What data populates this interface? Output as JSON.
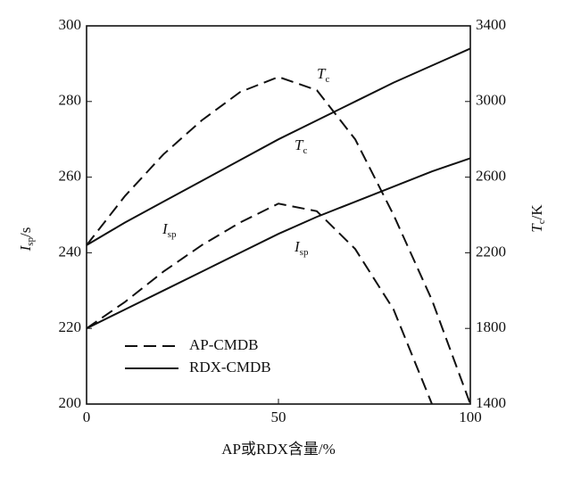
{
  "chart_data": {
    "type": "line",
    "x_label": "AP或RDX含量/%",
    "y_label": {
      "text": "I",
      "sub": "sp",
      "unit": "/s"
    },
    "y2_label": {
      "text": "T",
      "sub": "c",
      "unit": "/K"
    },
    "x": [
      0,
      10,
      20,
      30,
      40,
      50,
      60,
      70,
      80,
      90,
      100
    ],
    "xlim": [
      0,
      100
    ],
    "xticks": [
      0,
      50,
      100
    ],
    "ylim": [
      200,
      300
    ],
    "yticks": [
      200,
      220,
      240,
      260,
      280,
      300
    ],
    "y2lim": [
      1400,
      3400
    ],
    "y2ticks": [
      1400,
      1800,
      2200,
      2600,
      3000,
      3400
    ],
    "series": [
      {
        "name": "AP-CMDB",
        "color": "#111111",
        "dash": true,
        "axis": "y2",
        "values": [
          2240,
          2500,
          2720,
          2900,
          3050,
          3130,
          3060,
          2800,
          2400,
          1950,
          1400
        ]
      },
      {
        "name": "RDX-CMDB",
        "color": "#111111",
        "dash": false,
        "axis": "y2",
        "values": [
          2240,
          2360,
          2470,
          2580,
          2690,
          2800,
          2900,
          3000,
          3100,
          3190,
          3280
        ]
      },
      {
        "name": "AP-CMDB",
        "color": "#111111",
        "dash": true,
        "axis": "y",
        "values": [
          220,
          227,
          235,
          242,
          248,
          253,
          251,
          241,
          225,
          200,
          null
        ]
      },
      {
        "name": "RDX-CMDB",
        "color": "#111111",
        "dash": false,
        "axis": "y",
        "values": [
          220,
          225,
          230,
          235,
          240,
          245,
          249.5,
          253.5,
          257.5,
          261.5,
          265
        ]
      }
    ],
    "annotations": [
      {
        "text": "T",
        "sub": "c"
      },
      {
        "text": "T",
        "sub": "c"
      },
      {
        "text": "I",
        "sub": "sp"
      },
      {
        "text": "I",
        "sub": "sp"
      }
    ]
  }
}
